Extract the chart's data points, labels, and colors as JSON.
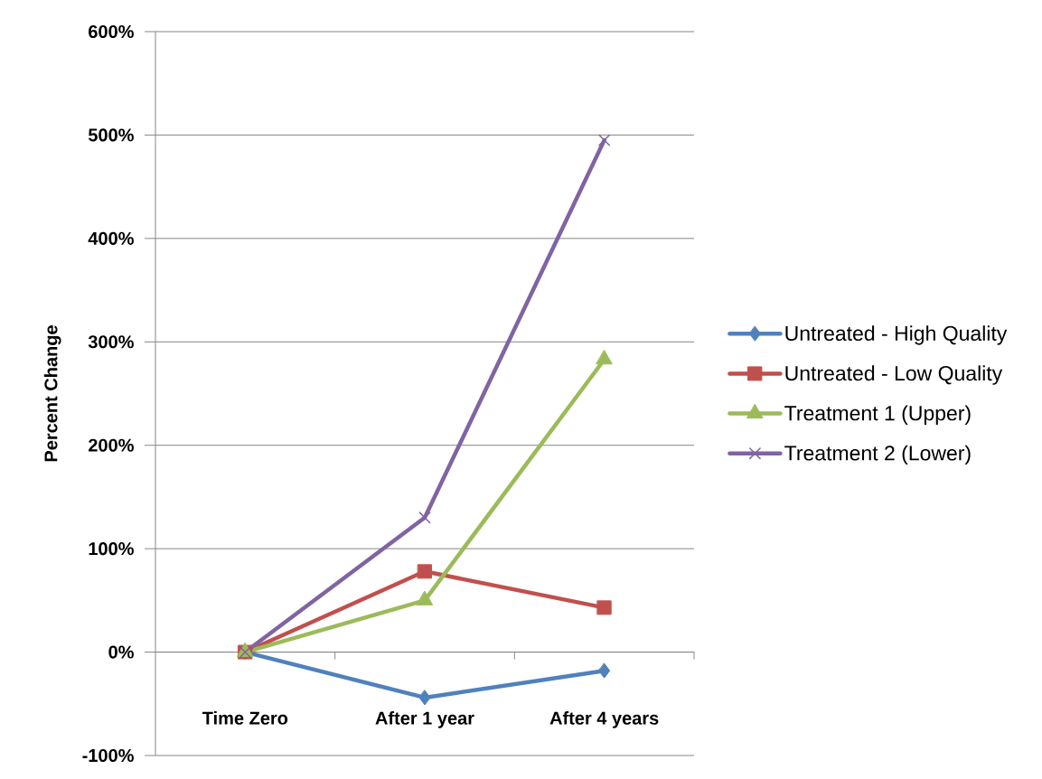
{
  "chart_data": {
    "type": "line",
    "ylabel": "Percent Change",
    "categories": [
      "Time Zero",
      "After 1 year",
      "After 4 years"
    ],
    "series": [
      {
        "name": "Untreated - High Quality",
        "color": "#4f81bd",
        "marker": "diamond",
        "values": [
          0,
          -44,
          -18
        ]
      },
      {
        "name": "Untreated - Low Quality",
        "color": "#c0504d",
        "marker": "square",
        "values": [
          0,
          78,
          43
        ]
      },
      {
        "name": "Treatment 1 (Upper)",
        "color": "#9bbb59",
        "marker": "triangle",
        "values": [
          0,
          50,
          283
        ]
      },
      {
        "name": "Treatment 2 (Lower)",
        "color": "#8064a2",
        "marker": "cross",
        "values": [
          0,
          130,
          495
        ]
      }
    ],
    "ylim": [
      -100,
      600
    ],
    "yticks": [
      {
        "value": -100,
        "label": "-100%"
      },
      {
        "value": 0,
        "label": "0%"
      },
      {
        "value": 100,
        "label": "100%"
      },
      {
        "value": 200,
        "label": "200%"
      },
      {
        "value": 300,
        "label": "300%"
      },
      {
        "value": 400,
        "label": "400%"
      },
      {
        "value": 500,
        "label": "500%"
      },
      {
        "value": 600,
        "label": "600%"
      }
    ],
    "grid": "y",
    "legend": "right",
    "line_style": "solid"
  }
}
